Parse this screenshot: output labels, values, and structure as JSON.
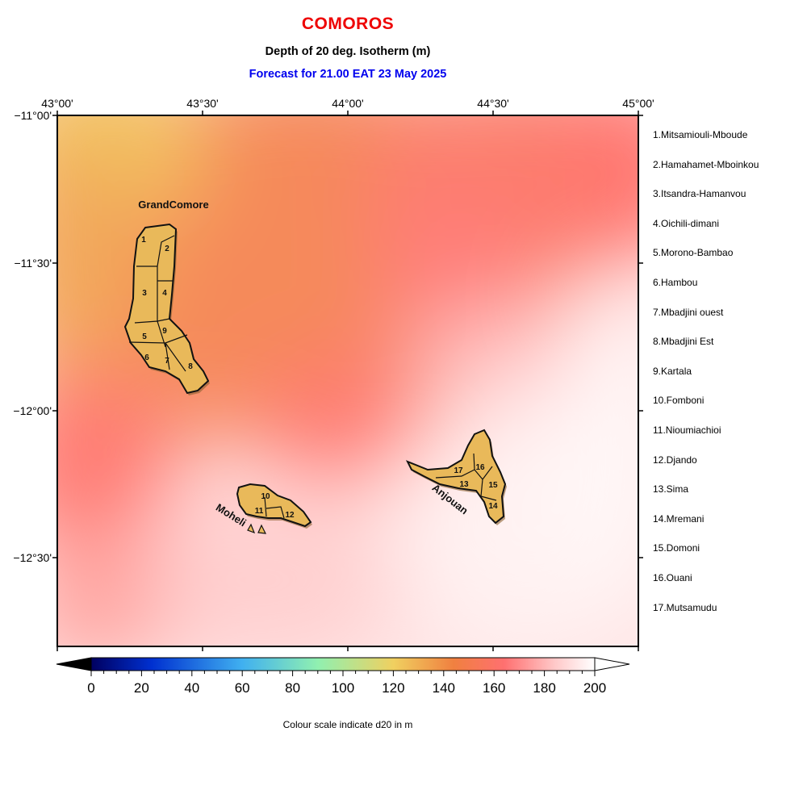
{
  "header": {
    "country": "COMOROS",
    "subtitle": "Depth of 20 deg. Isotherm (m)",
    "forecast": "Forecast for  21.00 EAT 23 May 2025"
  },
  "axes": {
    "longitude_labels": [
      "43°00'",
      "43°30'",
      "44°00'",
      "44°30'",
      "45°00'"
    ],
    "latitude_labels": [
      "−11°00'",
      "−11°30'",
      "−12°00'",
      "−12°30'"
    ],
    "lon_range": [
      43.0,
      45.0
    ],
    "lat_range": [
      -11.0,
      -12.8
    ]
  },
  "islands": {
    "grand_comore": "GrandComore",
    "moheli": "Moheli",
    "anjouan": "Anjouan"
  },
  "region_numbers": [
    "1",
    "2",
    "3",
    "4",
    "5",
    "6",
    "7",
    "8",
    "9",
    "10",
    "11",
    "12",
    "13",
    "14",
    "15",
    "16",
    "17"
  ],
  "legend": [
    "1.Mitsamiouli-Mboude",
    "2.Hamahamet-Mboinkou",
    "3.Itsandra-Hamanvou",
    "4.Oichili-dimani",
    "5.Morono-Bambao",
    "6.Hambou",
    "7.Mbadjini ouest",
    "8.Mbadjini Est",
    "9.Kartala",
    "10.Fomboni",
    "11.Nioumiachioi",
    "12.Djando",
    "13.Sima",
    "14.Mremani",
    "15.Domoni",
    "16.Ouani",
    "17.Mutsamudu"
  ],
  "colorbar": {
    "ticks": [
      "0",
      "20",
      "40",
      "60",
      "80",
      "100",
      "120",
      "140",
      "160",
      "180",
      "200"
    ],
    "caption": "Colour scale indicate d20 in m",
    "range": [
      0,
      200
    ],
    "colors": [
      "#000060",
      "#0030d0",
      "#40b0f0",
      "#90f0b0",
      "#f0d060",
      "#f08040",
      "#ff7070",
      "#ffffff"
    ]
  },
  "colors": {
    "title_red": "#ee0000",
    "forecast_blue": "#0000ee",
    "land_fill": "#e9b95a"
  }
}
